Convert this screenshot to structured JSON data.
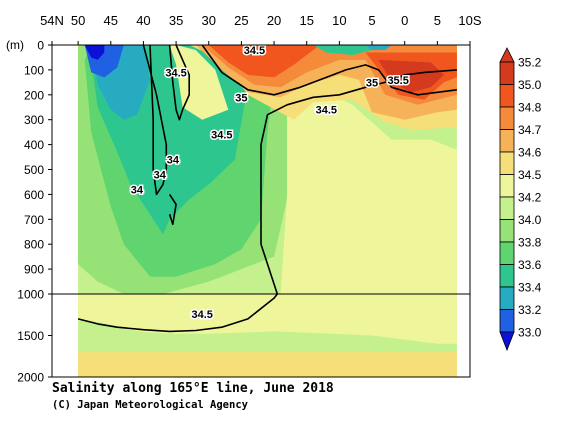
{
  "chart_data": {
    "type": "heatmap",
    "title": "Salinity along 165°E line, June 2018",
    "credit": "(C) Japan Meteorological Agency",
    "depth_unit_label": "(m)",
    "x_axis": {
      "range": [
        54,
        -10
      ],
      "ticks": [
        {
          "lat": 54,
          "label": "54N"
        },
        {
          "lat": 50,
          "label": "50"
        },
        {
          "lat": 45,
          "label": "45"
        },
        {
          "lat": 40,
          "label": "40"
        },
        {
          "lat": 35,
          "label": "35"
        },
        {
          "lat": 30,
          "label": "30"
        },
        {
          "lat": 25,
          "label": "25"
        },
        {
          "lat": 20,
          "label": "20"
        },
        {
          "lat": 15,
          "label": "15"
        },
        {
          "lat": 10,
          "label": "10"
        },
        {
          "lat": 5,
          "label": "5"
        },
        {
          "lat": 0,
          "label": "0"
        },
        {
          "lat": -5,
          "label": "5"
        },
        {
          "lat": -10,
          "label": "10S"
        }
      ]
    },
    "y_axis": {
      "range": [
        0,
        2000
      ],
      "split_depth": 1000,
      "ticks": [
        {
          "depth": 0,
          "label": "0"
        },
        {
          "depth": 100,
          "label": "100"
        },
        {
          "depth": 200,
          "label": "200"
        },
        {
          "depth": 300,
          "label": "300"
        },
        {
          "depth": 400,
          "label": "400"
        },
        {
          "depth": 500,
          "label": "500"
        },
        {
          "depth": 600,
          "label": "600"
        },
        {
          "depth": 700,
          "label": "700"
        },
        {
          "depth": 800,
          "label": "800"
        },
        {
          "depth": 900,
          "label": "900"
        },
        {
          "depth": 1000,
          "label": "1000"
        },
        {
          "depth": 1500,
          "label": "1500"
        },
        {
          "depth": 2000,
          "label": "2000"
        }
      ]
    },
    "colorbar": [
      {
        "label": "35.2",
        "color": "#d43a1e"
      },
      {
        "label": "35.0",
        "color": "#f0561e"
      },
      {
        "label": "34.8",
        "color": "#f58a3a"
      },
      {
        "label": "34.7",
        "color": "#f6b259"
      },
      {
        "label": "34.6",
        "color": "#f6df78"
      },
      {
        "label": "34.5",
        "color": "#eef59a"
      },
      {
        "label": "34.2",
        "color": "#c4f08e"
      },
      {
        "label": "34.0",
        "color": "#96e277"
      },
      {
        "label": "33.8",
        "color": "#60d46e"
      },
      {
        "label": "33.6",
        "color": "#2dc68f"
      },
      {
        "label": "33.4",
        "color": "#27abc0"
      },
      {
        "label": "33.2",
        "color": "#2061e4"
      },
      {
        "label": "33.0",
        "color": "#0b12d6"
      }
    ],
    "contour_labels": [
      {
        "text": "34.5",
        "lat": 23,
        "depth": 20
      },
      {
        "text": "34.5",
        "lat": 35,
        "depth": 110
      },
      {
        "text": "35",
        "lat": 25,
        "depth": 210
      },
      {
        "text": "35",
        "lat": 5,
        "depth": 150
      },
      {
        "text": "35.5",
        "lat": 1,
        "depth": 140
      },
      {
        "text": "34.5",
        "lat": 12,
        "depth": 260
      },
      {
        "text": "34.5",
        "lat": 28,
        "depth": 360
      },
      {
        "text": "34",
        "lat": 35.5,
        "depth": 460
      },
      {
        "text": "34",
        "lat": 37.5,
        "depth": 520
      },
      {
        "text": "34",
        "lat": 41,
        "depth": 580
      },
      {
        "text": "34.5",
        "lat": 31,
        "depth": 1240
      }
    ],
    "regions": [
      {
        "color": "#c4f08e",
        "depth": 2000,
        "points": [
          [
            50,
            0
          ],
          [
            -8,
            0
          ],
          [
            -8,
            2000
          ],
          [
            50,
            2000
          ]
        ]
      },
      {
        "color": "#96e277",
        "depth": 1000,
        "points": [
          [
            50,
            0
          ],
          [
            50,
            880
          ],
          [
            47,
            950
          ],
          [
            43,
            1000
          ],
          [
            37,
            1000
          ],
          [
            30,
            950
          ],
          [
            20,
            850
          ],
          [
            17,
            500
          ],
          [
            13,
            260
          ],
          [
            9,
            200
          ],
          [
            0,
            150
          ],
          [
            -8,
            150
          ],
          [
            -8,
            0
          ]
        ]
      },
      {
        "color": "#60d46e",
        "depth": 1000,
        "points": [
          [
            49,
            60
          ],
          [
            48,
            350
          ],
          [
            45,
            650
          ],
          [
            43,
            800
          ],
          [
            39,
            930
          ],
          [
            35,
            930
          ],
          [
            29,
            880
          ],
          [
            25,
            820
          ],
          [
            22,
            700
          ],
          [
            21,
            350
          ],
          [
            20,
            120
          ],
          [
            20,
            0
          ],
          [
            48,
            0
          ]
        ]
      },
      {
        "color": "#2dc68f",
        "depth": 1000,
        "points": [
          [
            48,
            60
          ],
          [
            47,
            250
          ],
          [
            44,
            430
          ],
          [
            42,
            560
          ],
          [
            40,
            640
          ],
          [
            37,
            760
          ],
          [
            36,
            700
          ],
          [
            33,
            620
          ],
          [
            30,
            560
          ],
          [
            26,
            460
          ],
          [
            24,
            160
          ],
          [
            24,
            0
          ],
          [
            48,
            0
          ]
        ]
      },
      {
        "color": "#27abc0",
        "depth": 1000,
        "points": [
          [
            48,
            0
          ],
          [
            47,
            160
          ],
          [
            45,
            260
          ],
          [
            43,
            300
          ],
          [
            41,
            280
          ],
          [
            39,
            140
          ],
          [
            40,
            0
          ]
        ]
      },
      {
        "color": "#2061e4",
        "depth": 1000,
        "points": [
          [
            49,
            0
          ],
          [
            48,
            110
          ],
          [
            46,
            130
          ],
          [
            44,
            90
          ],
          [
            43,
            0
          ]
        ]
      },
      {
        "color": "#0b12d6",
        "depth": 1000,
        "points": [
          [
            49,
            0
          ],
          [
            48,
            50
          ],
          [
            47,
            60
          ],
          [
            46,
            30
          ],
          [
            46,
            0
          ]
        ]
      },
      {
        "color": "#eef59a",
        "depth": 1000,
        "points": [
          [
            35,
            0
          ],
          [
            32,
            20
          ],
          [
            29,
            100
          ],
          [
            27,
            260
          ],
          [
            31,
            300
          ],
          [
            34,
            250
          ],
          [
            35,
            80
          ],
          [
            36,
            0
          ]
        ]
      },
      {
        "color": "#eef59a",
        "depth": 2000,
        "points": [
          [
            17,
            0
          ],
          [
            15,
            150
          ],
          [
            8,
            240
          ],
          [
            2,
            380
          ],
          [
            -4,
            380
          ],
          [
            -8,
            420
          ],
          [
            -8,
            1600
          ],
          [
            -5,
            1600
          ],
          [
            5,
            1500
          ],
          [
            20,
            1450
          ],
          [
            30,
            1480
          ],
          [
            35,
            1480
          ],
          [
            40,
            1460
          ],
          [
            44,
            1400
          ],
          [
            46,
            1350
          ],
          [
            50,
            1300
          ],
          [
            50,
            1000
          ],
          [
            30,
            1000
          ],
          [
            19,
            1000
          ],
          [
            18,
            600
          ],
          [
            18,
            250
          ],
          [
            19,
            100
          ],
          [
            20,
            0
          ]
        ]
      },
      {
        "color": "#f6df78",
        "depth": 2000,
        "points": [
          [
            33,
            0
          ],
          [
            28,
            60
          ],
          [
            24,
            200
          ],
          [
            17,
            300
          ],
          [
            14,
            230
          ],
          [
            8,
            220
          ],
          [
            3,
            310
          ],
          [
            -1,
            340
          ],
          [
            -8,
            330
          ],
          [
            -8,
            0
          ]
        ]
      },
      {
        "color": "#f6df78",
        "depth": 2000,
        "points": [
          [
            50,
            1700
          ],
          [
            -8,
            1700
          ],
          [
            -8,
            2000
          ],
          [
            50,
            2000
          ]
        ]
      },
      {
        "color": "#f6b259",
        "depth": 1000,
        "points": [
          [
            32,
            0
          ],
          [
            28,
            100
          ],
          [
            24,
            190
          ],
          [
            19,
            210
          ],
          [
            15,
            160
          ],
          [
            10,
            120
          ],
          [
            7,
            140
          ],
          [
            5,
            270
          ],
          [
            0,
            300
          ],
          [
            -5,
            270
          ],
          [
            -8,
            260
          ],
          [
            -8,
            0
          ]
        ]
      },
      {
        "color": "#f58a3a",
        "depth": 1000,
        "points": [
          [
            31,
            0
          ],
          [
            27,
            90
          ],
          [
            23,
            160
          ],
          [
            19,
            170
          ],
          [
            15,
            110
          ],
          [
            10,
            60
          ],
          [
            6,
            60
          ],
          [
            3,
            200
          ],
          [
            -2,
            240
          ],
          [
            -8,
            200
          ],
          [
            -8,
            0
          ]
        ]
      },
      {
        "color": "#f0561e",
        "depth": 1000,
        "points": [
          [
            30,
            0
          ],
          [
            27,
            70
          ],
          [
            24,
            120
          ],
          [
            20,
            130
          ],
          [
            17,
            80
          ],
          [
            15,
            40
          ],
          [
            13,
            0
          ]
        ]
      },
      {
        "color": "#f0561e",
        "depth": 1000,
        "points": [
          [
            6,
            30
          ],
          [
            3,
            130
          ],
          [
            1,
            200
          ],
          [
            -3,
            220
          ],
          [
            -6,
            150
          ],
          [
            -8,
            130
          ],
          [
            -8,
            30
          ]
        ]
      },
      {
        "color": "#d43a1e",
        "depth": 1000,
        "points": [
          [
            4,
            60
          ],
          [
            2,
            150
          ],
          [
            -1,
            190
          ],
          [
            -4,
            170
          ],
          [
            -6,
            120
          ],
          [
            -4,
            70
          ]
        ]
      },
      {
        "color": "#2dc68f",
        "depth": 1000,
        "points": [
          [
            14,
            0
          ],
          [
            12,
            30
          ],
          [
            8,
            40
          ],
          [
            5,
            20
          ],
          [
            3,
            0
          ]
        ]
      },
      {
        "color": "#27abc0",
        "depth": 1000,
        "points": [
          [
            6,
            0
          ],
          [
            5,
            20
          ],
          [
            3,
            20
          ],
          [
            2,
            0
          ]
        ]
      }
    ],
    "isolines": [
      {
        "value": "34.5",
        "depth": 1000,
        "points": [
          [
            35,
            0
          ],
          [
            34,
            60
          ],
          [
            33,
            120
          ],
          [
            33,
            200
          ],
          [
            34,
            260
          ],
          [
            34.5,
            300
          ],
          [
            35,
            260
          ],
          [
            35.5,
            150
          ],
          [
            36,
            0
          ]
        ]
      },
      {
        "value": "34.0",
        "depth": 1000,
        "points": [
          [
            40,
            0
          ],
          [
            38,
            200
          ],
          [
            36.5,
            400
          ],
          [
            36.5,
            500
          ],
          [
            37,
            560
          ],
          [
            38,
            600
          ],
          [
            38.5,
            500
          ],
          [
            38.5,
            300
          ],
          [
            39,
            0
          ]
        ]
      },
      {
        "value": "34.5",
        "depth": 1000,
        "points": [
          [
            19.5,
            1000
          ],
          [
            22,
            800
          ],
          [
            22,
            400
          ],
          [
            21,
            280
          ],
          [
            18,
            240
          ],
          [
            14,
            210
          ],
          [
            10,
            200
          ],
          [
            6,
            170
          ],
          [
            3,
            150
          ],
          [
            0,
            120
          ],
          [
            -3,
            110
          ],
          [
            -8,
            100
          ]
        ]
      },
      {
        "value": "35.0",
        "depth": 1000,
        "points": [
          [
            31,
            0
          ],
          [
            28,
            110
          ],
          [
            24,
            180
          ],
          [
            20,
            200
          ],
          [
            16,
            170
          ],
          [
            12,
            130
          ],
          [
            9,
            100
          ],
          [
            6,
            80
          ],
          [
            4,
            100
          ],
          [
            2,
            170
          ],
          [
            -2,
            200
          ],
          [
            -8,
            180
          ]
        ]
      },
      {
        "value": "34.5",
        "depth": 2000,
        "points": [
          [
            50,
            1300
          ],
          [
            47,
            1360
          ],
          [
            44,
            1400
          ],
          [
            40,
            1430
          ],
          [
            36,
            1450
          ],
          [
            32,
            1440
          ],
          [
            28,
            1400
          ],
          [
            24,
            1300
          ],
          [
            20,
            1050
          ],
          [
            19.5,
            1000
          ]
        ]
      },
      {
        "value": "34.0",
        "depth": 1000,
        "points": [
          [
            36,
            600
          ],
          [
            35,
            640
          ],
          [
            35.5,
            720
          ],
          [
            36,
            680
          ]
        ]
      }
    ]
  }
}
